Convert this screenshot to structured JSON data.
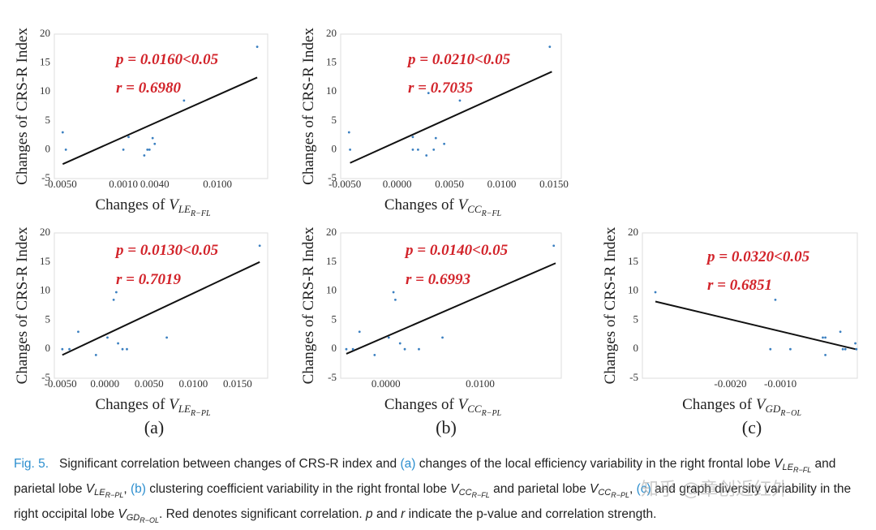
{
  "chart_data": [
    {
      "type": "scatter",
      "ylabel": "Changes of CRS-R Index",
      "xlabel": "Changes of ",
      "xlabel_var": "V",
      "xlabel_sub": "LE",
      "xlabel_subsub": "R−FL",
      "annotations": [
        "p = 0.0160<0.05",
        "r = 0.6980"
      ],
      "color": "#3a7fc0",
      "x": [
        -0.0048,
        -0.0045,
        0.001,
        0.0015,
        0.003,
        0.0033,
        0.0035,
        0.0038,
        0.004,
        0.0068,
        0.0138
      ],
      "y": [
        3,
        0,
        0,
        2.2,
        -1,
        0,
        0,
        2,
        1,
        8.5,
        17.8
      ],
      "fit_x": [
        -0.0048,
        0.0138
      ],
      "fit_y": [
        -2.5,
        12.5
      ],
      "xlim": [
        -0.0056,
        0.0148
      ],
      "ylim": [
        -5,
        20
      ],
      "xticks": [
        {
          "value": -0.005,
          "label": "-0.0050"
        },
        {
          "value": 0.001,
          "label": "0.0010"
        },
        {
          "value": 0.004,
          "label": "0.0040"
        },
        {
          "value": 0.01,
          "label": "0.0100"
        }
      ],
      "yticks": [
        -5,
        0,
        5,
        10,
        15,
        20
      ]
    },
    {
      "type": "scatter",
      "ylabel": "Changes of CRS-R Index",
      "xlabel": "Changes of ",
      "xlabel_var": "V",
      "xlabel_sub": "CC",
      "xlabel_subsub": "R−FL",
      "annotations": [
        "p = 0.0210<0.05",
        "r = 0.7035"
      ],
      "color": "#3a7fc0",
      "x": [
        -0.0046,
        -0.0045,
        0.0015,
        0.0015,
        0.002,
        0.0028,
        0.003,
        0.0035,
        0.0037,
        0.0045,
        0.006,
        0.0146
      ],
      "y": [
        3,
        0,
        2.2,
        0,
        0,
        -1,
        9.8,
        0,
        2,
        1,
        8.5,
        17.8
      ],
      "fit_x": [
        -0.0045,
        0.0148
      ],
      "fit_y": [
        -2.3,
        13.5
      ],
      "xlim": [
        -0.0054,
        0.0157
      ],
      "ylim": [
        -5,
        20
      ],
      "xticks": [
        {
          "value": -0.005,
          "label": "-0.0050"
        },
        {
          "value": 0,
          "label": "0.0000"
        },
        {
          "value": 0.005,
          "label": "0.0050"
        },
        {
          "value": 0.01,
          "label": "0.0100"
        },
        {
          "value": 0.015,
          "label": "0.0150"
        }
      ],
      "yticks": [
        -5,
        0,
        5,
        10,
        15,
        20
      ]
    },
    {
      "type": "scatter",
      "ylabel": "Changes of CRS-R Index",
      "xlabel": "Changes of ",
      "xlabel_var": "V",
      "xlabel_sub": "LE",
      "xlabel_subsub": "R−PL",
      "annotations": [
        "p = 0.0130<0.05",
        "r = 0.7019"
      ],
      "color": "#3a7fc0",
      "x": [
        -0.0048,
        -0.004,
        -0.003,
        -0.001,
        0.0003,
        0.001,
        0.0013,
        0.0015,
        0.002,
        0.0025,
        0.007,
        0.0175
      ],
      "y": [
        0,
        0,
        3,
        -1,
        2,
        8.5,
        9.8,
        1,
        0,
        0,
        2,
        17.8
      ],
      "fit_x": [
        -0.0048,
        0.0175
      ],
      "fit_y": [
        -1,
        15
      ],
      "xlim": [
        -0.0057,
        0.0184
      ],
      "ylim": [
        -5,
        20
      ],
      "xticks": [
        {
          "value": -0.005,
          "label": "-0.0050"
        },
        {
          "value": 0,
          "label": "0.0000"
        },
        {
          "value": 0.005,
          "label": "0.0050"
        },
        {
          "value": 0.01,
          "label": "0.0100"
        },
        {
          "value": 0.015,
          "label": "0.0150"
        }
      ],
      "yticks": [
        -5,
        0,
        5,
        10,
        15,
        20
      ]
    },
    {
      "type": "scatter",
      "ylabel": "Changes of CRS-R Index",
      "xlabel": "Changes of ",
      "xlabel_var": "V",
      "xlabel_sub": "CC",
      "xlabel_subsub": "R−PL",
      "annotations": [
        "p = 0.0140<0.05",
        "r = 0.6993"
      ],
      "color": "#3a7fc0",
      "x": [
        -0.0042,
        -0.0035,
        -0.0028,
        -0.0012,
        0.0003,
        0.0008,
        0.001,
        0.0015,
        0.002,
        0.0035,
        0.006,
        0.0178
      ],
      "y": [
        0,
        0,
        3,
        -1,
        2,
        9.8,
        8.5,
        1,
        0,
        0,
        2,
        17.8
      ],
      "fit_x": [
        -0.0042,
        0.018
      ],
      "fit_y": [
        -0.8,
        14.8
      ],
      "xlim": [
        -0.0048,
        0.0186
      ],
      "ylim": [
        -5,
        20
      ],
      "xticks": [
        {
          "value": 0,
          "label": "0.0000"
        },
        {
          "value": 0.01,
          "label": "0.0100"
        }
      ],
      "yticks": [
        -5,
        0,
        5,
        10,
        15,
        20
      ]
    },
    {
      "type": "scatter",
      "ylabel": "Changes of CRS-R Index",
      "xlabel": "Changes of ",
      "xlabel_var": "V",
      "xlabel_sub": "GD",
      "xlabel_subsub": "R−OL",
      "annotations": [
        "p = 0.0320<0.05",
        "r = 0.6851"
      ],
      "color": "#3a7fc0",
      "x": [
        -0.0035,
        -0.0012,
        -0.0011,
        -0.0008,
        -0.00015,
        -0.0001,
        -0.0001,
        0.0002,
        0.00025,
        0.0003,
        0.0005,
        0.00052
      ],
      "y": [
        9.8,
        0,
        8.5,
        0,
        2,
        2,
        -1,
        3,
        0,
        0,
        1,
        0
      ],
      "fit_x": [
        -0.0035,
        0.0005
      ],
      "fit_y": [
        8.2,
        0
      ],
      "xlim": [
        -0.00376,
        0.00054
      ],
      "ylim": [
        -5,
        20
      ],
      "xticks": [
        {
          "value": -0.002,
          "label": "-0.0020"
        },
        {
          "value": -0.001,
          "label": "-0.0010"
        }
      ],
      "yticks": [
        -5,
        0,
        5,
        10,
        15,
        20
      ]
    }
  ],
  "panel_labels": [
    "(a)",
    "(b)",
    "(c)"
  ],
  "caption": [
    {
      "text": "Fig. 5.",
      "style": "blue"
    },
    {
      "text": "   Significant correlation between changes of CRS-R index and ",
      "style": "plain"
    },
    {
      "text": "(a)",
      "style": "blue"
    },
    {
      "text": " changes of the local efficiency variability in the right frontal lobe ",
      "style": "plain"
    },
    {
      "var": "V",
      "sub": "LE",
      "subsub": "R−FL"
    },
    {
      "text": " and parietal lobe ",
      "style": "plain"
    },
    {
      "var": "V",
      "sub": "LE",
      "subsub": "R−PL"
    },
    {
      "text": ", ",
      "style": "plain"
    },
    {
      "text": "(b)",
      "style": "blue"
    },
    {
      "text": " clustering coefficient variability in the right frontal lobe ",
      "style": "plain"
    },
    {
      "var": "V",
      "sub": "CC",
      "subsub": "R−FL"
    },
    {
      "text": " and parietal lobe ",
      "style": "plain"
    },
    {
      "var": "V",
      "sub": "CC",
      "subsub": "R−PL"
    },
    {
      "text": ", ",
      "style": "plain"
    },
    {
      "text": "(c)",
      "style": "blue"
    },
    {
      "text": " and graph diversity variability in the right occipital lobe ",
      "style": "plain"
    },
    {
      "var": "V",
      "sub": "GD",
      "subsub": "R−OL"
    },
    {
      "text": ". Red denotes significant correlation. ",
      "style": "plain"
    },
    {
      "text": "p",
      "style": "it"
    },
    {
      "text": " and ",
      "style": "plain"
    },
    {
      "text": "r",
      "style": "it"
    },
    {
      "text": " indicate the p-value and correlation strength.",
      "style": "plain"
    }
  ],
  "watermark": "知乎 @章创近红外"
}
